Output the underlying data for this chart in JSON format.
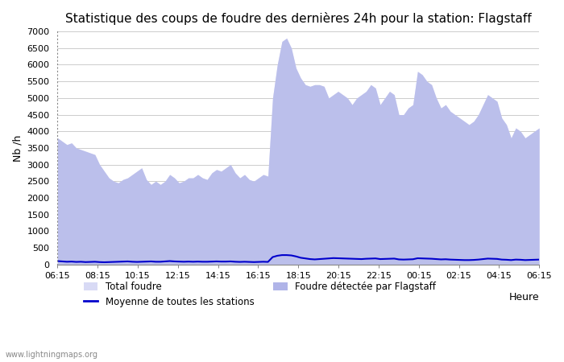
{
  "title": "Statistique des coups de foudre des dernières 24h pour la station: Flagstaff",
  "ylabel": "Nb /h",
  "xlabel": "Heure",
  "ylim": [
    0,
    7000
  ],
  "yticks": [
    0,
    500,
    1000,
    1500,
    2000,
    2500,
    3000,
    3500,
    4000,
    4500,
    5000,
    5500,
    6000,
    6500,
    7000
  ],
  "xtick_labels": [
    "06:15",
    "08:15",
    "10:15",
    "12:15",
    "14:15",
    "16:15",
    "18:15",
    "20:15",
    "22:15",
    "00:15",
    "02:15",
    "04:15",
    "06:15"
  ],
  "watermark": "www.lightningmaps.org",
  "legend": [
    {
      "label": "Total foudre",
      "color": "#d0d4f0",
      "type": "fill"
    },
    {
      "label": "Moyenne de toutes les stations",
      "color": "#0000cc",
      "type": "line"
    },
    {
      "label": "Foudre détectée par Flagstaff",
      "color": "#9090d8",
      "type": "fill"
    }
  ],
  "total_foudre": [
    3800,
    3700,
    3600,
    3650,
    3500,
    3450,
    3400,
    3350,
    3300,
    3000,
    2800,
    2600,
    2500,
    2450,
    2550,
    2600,
    2700,
    2800,
    2900,
    2550,
    2400,
    2500,
    2400,
    2500,
    2700,
    2600,
    2450,
    2500,
    2600,
    2600,
    2700,
    2600,
    2550,
    2750,
    2850,
    2800,
    2900,
    3000,
    2750,
    2600,
    2700,
    2550,
    2500,
    2600,
    2700,
    2650,
    5000,
    6000,
    6700,
    6800,
    6500,
    5900,
    5600,
    5400,
    5350,
    5400,
    5400,
    5350,
    5000,
    5100,
    5200,
    5100,
    5000,
    4800,
    5000,
    5100,
    5200,
    5400,
    5300,
    4800,
    5000,
    5200,
    5100,
    4500,
    4500,
    4700,
    4800,
    5800,
    5700,
    5500,
    5400,
    5000,
    4700,
    4800,
    4600,
    4500,
    4400,
    4300,
    4200,
    4300,
    4500,
    4800,
    5100,
    5000,
    4900,
    4400,
    4200,
    3800,
    4100,
    4000,
    3800,
    3900,
    4000,
    4100
  ],
  "flagstaff": [
    3800,
    3700,
    3600,
    3650,
    3500,
    3450,
    3400,
    3350,
    3300,
    3000,
    2800,
    2600,
    2500,
    2450,
    2550,
    2600,
    2700,
    2800,
    2900,
    2550,
    2400,
    2500,
    2400,
    2500,
    2700,
    2600,
    2450,
    2500,
    2600,
    2600,
    2700,
    2600,
    2550,
    2750,
    2850,
    2800,
    2900,
    3000,
    2750,
    2600,
    2700,
    2550,
    2500,
    2600,
    2700,
    2650,
    5000,
    6000,
    6700,
    6800,
    6500,
    5900,
    5600,
    5400,
    5350,
    5400,
    5400,
    5350,
    5000,
    5100,
    5200,
    5100,
    5000,
    4800,
    5000,
    5100,
    5200,
    5400,
    5300,
    4800,
    5000,
    5200,
    5100,
    4500,
    4500,
    4700,
    4800,
    5800,
    5700,
    5500,
    5400,
    5000,
    4700,
    4800,
    4600,
    4500,
    4400,
    4300,
    4200,
    4300,
    4500,
    4800,
    5100,
    5000,
    4900,
    4400,
    4200,
    3800,
    4100,
    4000,
    3800,
    3900,
    4000,
    4100
  ],
  "moyenne": [
    100,
    90,
    80,
    85,
    75,
    80,
    70,
    75,
    80,
    70,
    65,
    70,
    75,
    80,
    85,
    90,
    80,
    75,
    80,
    85,
    90,
    80,
    80,
    90,
    100,
    90,
    85,
    80,
    85,
    80,
    85,
    80,
    80,
    85,
    90,
    85,
    85,
    90,
    80,
    75,
    80,
    75,
    70,
    75,
    80,
    75,
    220,
    260,
    280,
    280,
    270,
    240,
    200,
    180,
    160,
    150,
    160,
    170,
    180,
    190,
    185,
    180,
    175,
    170,
    165,
    160,
    170,
    175,
    180,
    160,
    165,
    170,
    175,
    150,
    145,
    150,
    155,
    185,
    180,
    175,
    170,
    160,
    150,
    155,
    145,
    140,
    135,
    130,
    130,
    135,
    145,
    160,
    175,
    170,
    165,
    145,
    140,
    130,
    145,
    140,
    130,
    135,
    140,
    145
  ]
}
